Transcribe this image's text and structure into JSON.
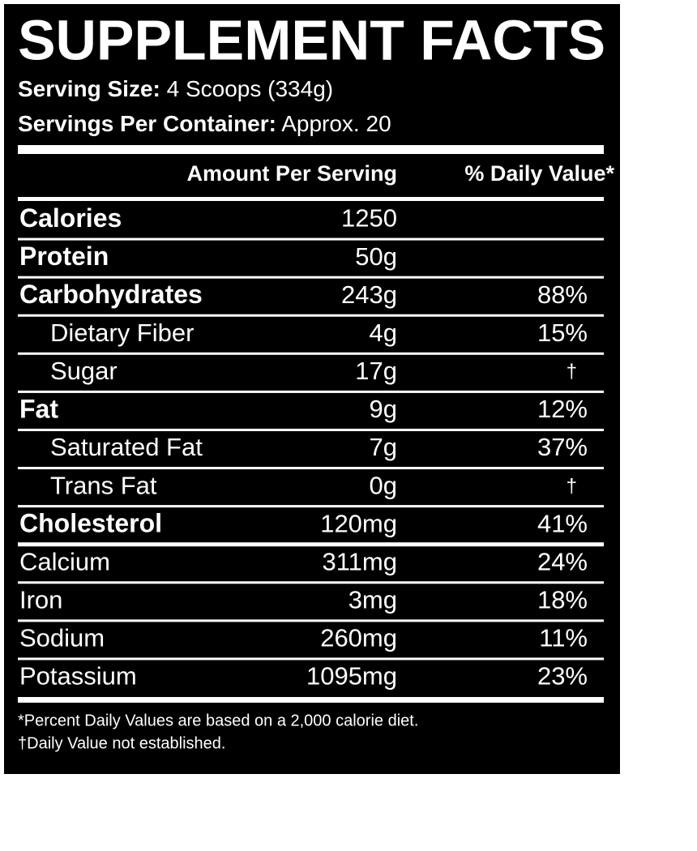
{
  "title": "SUPPLEMENT FACTS",
  "serving_size": {
    "label": "Serving Size:",
    "value": "4 Scoops (334g)"
  },
  "servings_per_container": {
    "label": "Servings Per Container:",
    "value": "Approx. 20"
  },
  "table": {
    "headers": [
      "Amount Per Serving",
      "% Daily Value*"
    ],
    "nutrients": [
      {
        "name": "Calories",
        "amount": "1250"
      },
      {
        "name": "Protein",
        "amount": "50g"
      },
      {
        "name": "Carbohydrates",
        "amount": "243g",
        "daily_value": "88%",
        "subnutrients": [
          {
            "name": "Dietary Fiber",
            "amount": "4g",
            "daily_value": "15%"
          },
          {
            "name": "Sugar",
            "amount": "17g",
            "daily_value": "†"
          }
        ]
      },
      {
        "name": "Fat",
        "amount": "9g",
        "daily_value": "12%",
        "subnutrients": [
          {
            "name": "Saturated Fat",
            "amount": "7g",
            "daily_value": "37%"
          },
          {
            "name": "Trans Fat",
            "amount": "0g",
            "daily_value": "†"
          }
        ]
      },
      {
        "name": "Cholesterol",
        "amount": "120mg",
        "daily_value": "41%"
      }
    ],
    "minerals": [
      {
        "name": "Calcium",
        "amount": "311mg",
        "daily_value": "24%"
      },
      {
        "name": "Iron",
        "amount": "3mg",
        "daily_value": "18%"
      },
      {
        "name": "Sodium",
        "amount": "260mg",
        "daily_value": "11%"
      },
      {
        "name": "Potassium",
        "amount": "1095mg",
        "daily_value": "23%"
      }
    ]
  },
  "footnotes": [
    "*Percent Daily Values are based on a 2,000 calorie diet.",
    "†Daily Value not established."
  ]
}
